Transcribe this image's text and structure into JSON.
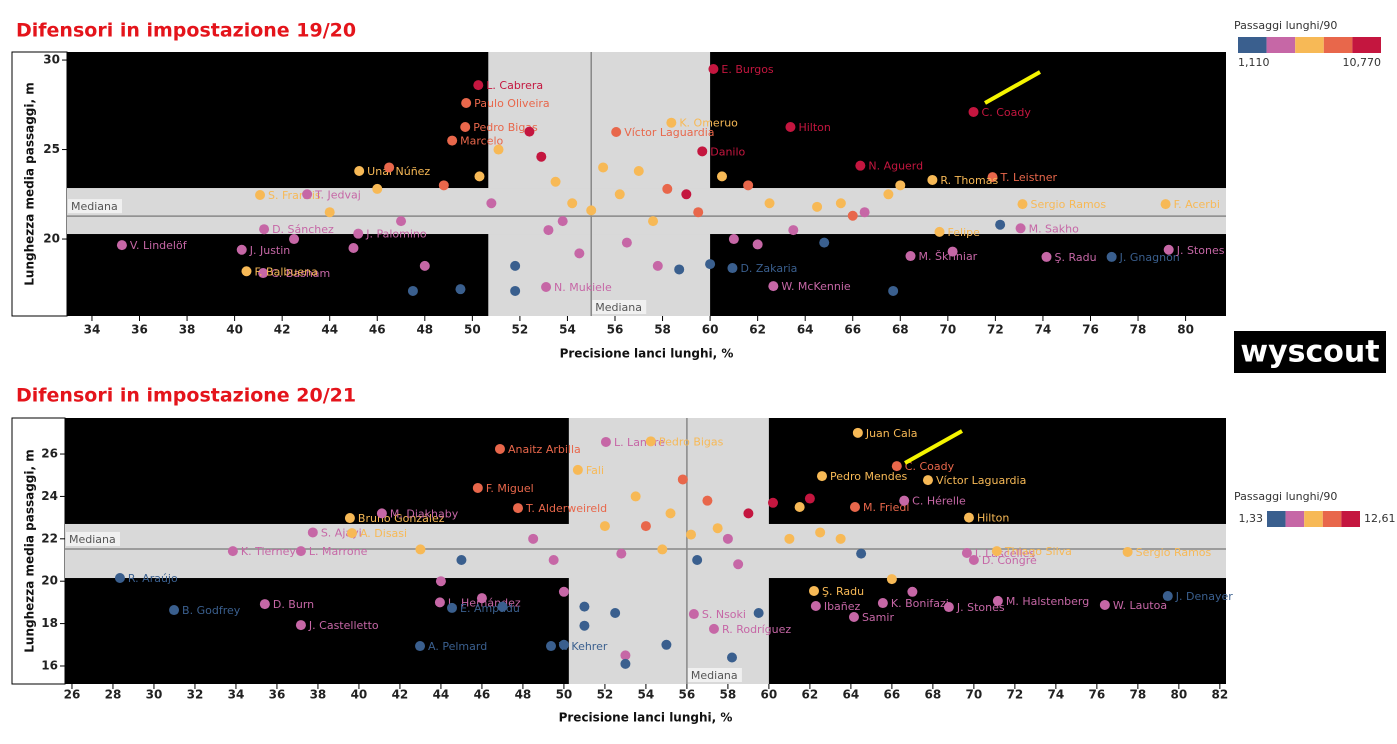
{
  "chart_data": [
    {
      "type": "scatter",
      "title": "Difensori in impostazione 19/20",
      "xlabel": "Precisione lanci lunghi, %",
      "ylabel": "Lunghezza media passaggi, m",
      "xlim": [
        32.95,
        81.7
      ],
      "ylim": [
        15.7,
        30.45
      ],
      "xticks": [
        34,
        36,
        38,
        40,
        42,
        44,
        46,
        48,
        50,
        52,
        54,
        56,
        58,
        60,
        62,
        64,
        66,
        68,
        70,
        72,
        74,
        76,
        78,
        80
      ],
      "yticks": [
        20,
        25,
        30
      ],
      "median_x": 55.0,
      "median_y": 21.28,
      "median_label": "Mediana",
      "band_x": [
        50.67,
        60.0
      ],
      "band_y": [
        20.28,
        22.85
      ],
      "legend": {
        "title": "Passaggi lunghi/90",
        "min_label": "1,110",
        "max_label": "10,770",
        "colors": [
          "#3a5f8e",
          "#c667a6",
          "#f7b956",
          "#e8674b",
          "#c4163f"
        ]
      },
      "brand": "wyscout",
      "labels": [
        "L. Cabrera",
        "Paulo Oliveira",
        "E. Burgos",
        "Pedro Bigas",
        "Víctor Laguardia",
        "K. Omeruo",
        "Danilo",
        "Hilton",
        "C. Coady",
        "Marcelo",
        "N. Aguerd",
        "T. Leistner",
        "Unai Núñez",
        "S. Francis",
        "T. Jedvaj",
        "R. Thomas",
        "Sergio Ramos",
        "F. Acerbi",
        "J. Palomino",
        "Felipe",
        "M. Sakho",
        "D. Sánchez",
        "V. Lindelöf",
        "J. Justin",
        "C. Basham",
        "F. Balbuena",
        "D. Zakaria",
        "M. Škriniar",
        "Ş. Radu",
        "J. Gnagnon",
        "J. Stones",
        "W. McKennie",
        "N. Mukiele",
        null,
        null,
        null,
        null,
        null,
        null,
        null,
        null,
        null,
        null,
        null,
        null,
        null,
        null,
        null,
        null,
        null,
        null,
        null,
        null,
        null,
        null,
        null,
        null,
        null,
        null,
        null,
        null,
        null,
        null,
        null,
        null,
        null,
        null,
        null,
        null,
        null,
        null,
        null,
        null,
        null,
        null,
        null,
        null,
        null,
        null,
        null,
        null
      ],
      "x": [
        50.25,
        49.74,
        60.14,
        49.7,
        56.05,
        58.37,
        59.67,
        63.38,
        71.08,
        49.15,
        66.32,
        71.88,
        45.24,
        41.07,
        43.05,
        69.35,
        73.14,
        79.16,
        45.2,
        69.65,
        73.06,
        41.24,
        35.26,
        40.3,
        41.2,
        40.5,
        60.94,
        68.43,
        74.15,
        76.89,
        79.29,
        62.66,
        53.1,
        48.8,
        50.3,
        51.1,
        52.4,
        52.9,
        53.5,
        54.2,
        55.5,
        56.2,
        57.0,
        57.6,
        58.2,
        59.0,
        59.5,
        60.5,
        61.6,
        62.5,
        63.5,
        64.5,
        65.5,
        66.5,
        67.5,
        47.0,
        46.0,
        45.0,
        44.0,
        42.5,
        48.0,
        47.5,
        49.5,
        51.8,
        51.8,
        53.2,
        54.5,
        56.5,
        57.8,
        58.7,
        60.0,
        62.0,
        64.8,
        67.7,
        72.2,
        70.2,
        50.8,
        55.0,
        53.8,
        61.0,
        66.0,
        68.0,
        46.5
      ],
      "y": [
        28.6,
        27.6,
        29.5,
        26.26,
        25.98,
        26.5,
        24.9,
        26.26,
        27.1,
        25.5,
        24.1,
        23.46,
        23.8,
        22.46,
        22.5,
        23.3,
        21.95,
        21.95,
        20.3,
        20.4,
        20.6,
        20.55,
        19.66,
        19.4,
        18.1,
        18.2,
        18.38,
        19.05,
        19.0,
        19.0,
        19.4,
        17.37,
        17.32,
        23.0,
        23.5,
        25.0,
        26.0,
        24.6,
        23.2,
        22.0,
        24.0,
        22.5,
        23.8,
        21.0,
        22.8,
        22.5,
        21.5,
        23.5,
        23.0,
        22.0,
        20.5,
        21.8,
        22.0,
        21.5,
        22.5,
        21.0,
        22.8,
        19.5,
        21.5,
        20.0,
        18.5,
        17.1,
        17.2,
        18.5,
        17.1,
        20.5,
        19.2,
        19.8,
        18.5,
        18.3,
        18.6,
        19.7,
        19.8,
        17.1,
        20.8,
        19.3,
        22.0,
        21.6,
        21.0,
        20.0,
        21.3,
        23.0,
        24.0
      ],
      "colors": [
        "#c4163f",
        "#e8674b",
        "#c4163f",
        "#e8674b",
        "#e8674b",
        "#f7b956",
        "#c4163f",
        "#c4163f",
        "#c4163f",
        "#e8674b",
        "#c4163f",
        "#e8674b",
        "#f7b956",
        "#f7b956",
        "#c667a6",
        "#f7b956",
        "#f7b956",
        "#f7b956",
        "#c667a6",
        "#f7b956",
        "#c667a6",
        "#c667a6",
        "#c667a6",
        "#c667a6",
        "#c667a6",
        "#f7b956",
        "#3a5f8e",
        "#c667a6",
        "#c667a6",
        "#3a5f8e",
        "#c667a6",
        "#c667a6",
        "#c667a6",
        "#e8674b",
        "#f7b956",
        "#f7b956",
        "#c4163f",
        "#c4163f",
        "#f7b956",
        "#f7b956",
        "#f7b956",
        "#f7b956",
        "#f7b956",
        "#f7b956",
        "#e8674b",
        "#c4163f",
        "#e8674b",
        "#f7b956",
        "#e8674b",
        "#f7b956",
        "#c667a6",
        "#f7b956",
        "#f7b956",
        "#c667a6",
        "#f7b956",
        "#c667a6",
        "#f7b956",
        "#c667a6",
        "#f7b956",
        "#c667a6",
        "#c667a6",
        "#3a5f8e",
        "#3a5f8e",
        "#3a5f8e",
        "#3a5f8e",
        "#c667a6",
        "#c667a6",
        "#c667a6",
        "#c667a6",
        "#3a5f8e",
        "#3a5f8e",
        "#c667a6",
        "#3a5f8e",
        "#3a5f8e",
        "#3a5f8e",
        "#c667a6",
        "#c667a6",
        "#f7b956",
        "#c667a6",
        "#c667a6",
        "#e8674b",
        "#f7b956",
        "#e8674b"
      ]
    },
    {
      "type": "scatter",
      "title": "Difensori in impostazione 20/21",
      "xlabel": "Precisione lanci lunghi, %",
      "ylabel": "Lunghezza media passaggi, m",
      "xlim": [
        25.66,
        82.3
      ],
      "ylim": [
        15.15,
        27.7
      ],
      "xticks": [
        26,
        28,
        30,
        32,
        34,
        36,
        38,
        40,
        42,
        44,
        46,
        48,
        50,
        52,
        54,
        56,
        58,
        60,
        62,
        64,
        66,
        68,
        70,
        72,
        74,
        76,
        78,
        80,
        82
      ],
      "yticks": [
        16,
        18,
        20,
        22,
        24,
        26
      ],
      "median_x": 56.0,
      "median_y": 21.52,
      "median_label": "Mediana",
      "band_x": [
        50.24,
        60.0
      ],
      "band_y": [
        20.15,
        22.7
      ],
      "legend": {
        "title": "Passaggi lunghi/90",
        "min_label": "1,33",
        "max_label": "12,61",
        "colors": [
          "#3a5f8e",
          "#c667a6",
          "#f7b956",
          "#e8674b",
          "#c4163f"
        ]
      },
      "labels": [
        "L. Landre",
        "Pedro Bigas",
        "Anaitz Arbilla",
        "Juan Cala",
        "C. Coady",
        "Víctor Laguardia",
        "Pedro Mendes",
        "Fali",
        "F. Miguel",
        "M. Friedl",
        "Bruno González",
        "M. Diakhaby",
        "T. Alderweireld",
        "C. Hérelle",
        "Hilton",
        "S. Ajayi",
        "A. Disasi",
        "K. Tierney",
        "L. Marrone",
        "J. Lascelles",
        "Thiago Silva",
        "Sergio Ramos",
        "D. Congrè",
        "R. Araújo",
        "Ş. Radu",
        "L. Hernández",
        "M. Halstenberg",
        "W. Lautoa",
        "J. Denayer",
        "B. Godfrey",
        "D. Burn",
        "E. Ampadu",
        "Ibañez",
        "K. Bonifazi",
        "J. Castelletto",
        "S. Nsoki",
        "J. Stones",
        "Samir",
        "R. Rodríguez",
        "A. Pelmard",
        "T. Kehrer",
        null,
        null,
        null,
        null,
        null,
        null,
        null,
        null,
        null,
        null,
        null,
        null,
        null,
        null,
        null,
        null,
        null,
        null,
        null,
        null,
        null,
        null,
        null,
        null,
        null,
        null,
        null,
        null,
        null,
        null,
        null,
        null,
        null,
        null,
        null,
        null,
        null,
        null,
        null,
        null
      ],
      "x": [
        52.05,
        54.24,
        46.88,
        64.34,
        66.24,
        67.76,
        62.59,
        50.68,
        45.8,
        64.2,
        39.56,
        41.12,
        47.76,
        66.6,
        69.76,
        37.75,
        39.66,
        33.85,
        37.17,
        69.66,
        71.12,
        77.5,
        70.0,
        28.34,
        62.2,
        43.95,
        71.17,
        76.39,
        79.46,
        30.98,
        35.41,
        44.54,
        62.29,
        65.56,
        37.17,
        56.34,
        68.78,
        64.15,
        57.32,
        42.98,
        49.37,
        48.5,
        49.5,
        50.0,
        51.0,
        51.0,
        52.0,
        52.8,
        53.5,
        54.0,
        54.8,
        55.2,
        55.8,
        56.2,
        56.5,
        57.0,
        57.5,
        58.0,
        58.5,
        58.2,
        59.0,
        59.5,
        60.2,
        61.0,
        61.5,
        62.0,
        62.5,
        63.5,
        64.5,
        66.0,
        67.0,
        45.0,
        46.0,
        47.0,
        44.0,
        43.0,
        53.0,
        55.0,
        52.5,
        50.0,
        53.0
      ],
      "y": [
        26.57,
        26.6,
        26.24,
        27.0,
        25.43,
        24.77,
        24.96,
        25.25,
        24.4,
        23.5,
        22.98,
        23.2,
        23.45,
        23.8,
        23.0,
        22.3,
        22.27,
        21.42,
        21.42,
        21.33,
        21.42,
        21.38,
        21.0,
        20.15,
        19.54,
        19.0,
        19.07,
        18.88,
        19.3,
        18.64,
        18.92,
        18.74,
        18.83,
        18.97,
        17.93,
        18.45,
        18.78,
        18.31,
        17.75,
        16.94,
        16.94,
        22.0,
        21.0,
        19.5,
        18.8,
        17.9,
        22.6,
        21.3,
        24.0,
        22.6,
        21.5,
        23.2,
        24.8,
        22.2,
        21.0,
        23.8,
        22.5,
        22.0,
        20.8,
        16.4,
        23.2,
        18.5,
        23.7,
        22.0,
        23.5,
        23.9,
        22.3,
        22.0,
        21.3,
        20.1,
        19.5,
        21.0,
        19.2,
        18.8,
        20.0,
        21.5,
        16.5,
        17.0,
        18.5,
        17.0,
        16.1
      ],
      "colors": [
        "#c667a6",
        "#f7b956",
        "#e8674b",
        "#f7b956",
        "#e8674b",
        "#f7b956",
        "#f7b956",
        "#f7b956",
        "#e8674b",
        "#e8674b",
        "#f7b956",
        "#c667a6",
        "#e8674b",
        "#c667a6",
        "#f7b956",
        "#c667a6",
        "#f7b956",
        "#c667a6",
        "#c667a6",
        "#c667a6",
        "#f7b956",
        "#f7b956",
        "#c667a6",
        "#3a5f8e",
        "#f7b956",
        "#c667a6",
        "#c667a6",
        "#c667a6",
        "#3a5f8e",
        "#3a5f8e",
        "#c667a6",
        "#3a5f8e",
        "#c667a6",
        "#c667a6",
        "#c667a6",
        "#c667a6",
        "#c667a6",
        "#c667a6",
        "#c667a6",
        "#3a5f8e",
        "#3a5f8e",
        "#c667a6",
        "#c667a6",
        "#c667a6",
        "#3a5f8e",
        "#3a5f8e",
        "#f7b956",
        "#c667a6",
        "#f7b956",
        "#e8674b",
        "#f7b956",
        "#f7b956",
        "#e8674b",
        "#f7b956",
        "#3a5f8e",
        "#e8674b",
        "#f7b956",
        "#c667a6",
        "#c667a6",
        "#3a5f8e",
        "#c4163f",
        "#3a5f8e",
        "#c4163f",
        "#f7b956",
        "#f7b956",
        "#c4163f",
        "#f7b956",
        "#f7b956",
        "#3a5f8e",
        "#f7b956",
        "#c667a6",
        "#3a5f8e",
        "#c667a6",
        "#3a5f8e",
        "#c667a6",
        "#f7b956",
        "#c667a6",
        "#3a5f8e",
        "#3a5f8e",
        "#3a5f8e",
        "#3a5f8e"
      ]
    }
  ]
}
